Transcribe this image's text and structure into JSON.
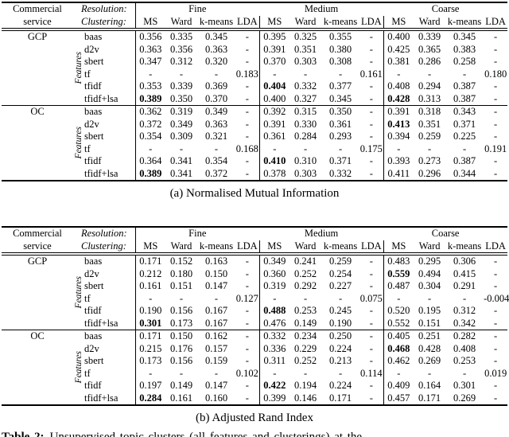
{
  "tables": [
    {
      "caption": "(a) Normalised Mutual Information",
      "header": {
        "col1_line1": "Commercial",
        "col1_line2": "service",
        "row1_label": "Resolution:",
        "row2_label": "Clustering:",
        "groups": [
          "Fine",
          "Medium",
          "Coarse"
        ],
        "subcolumns": [
          "MS",
          "Ward",
          "k-means",
          "LDA"
        ]
      },
      "sections": [
        {
          "service": "GCP",
          "features_label": "Features",
          "rows": [
            {
              "feature": "baas",
              "values": [
                "0.356",
                "0.335",
                "0.345",
                "-",
                "0.395",
                "0.325",
                "0.355",
                "-",
                "0.400",
                "0.339",
                "0.345",
                "-"
              ],
              "bold": []
            },
            {
              "feature": "d2v",
              "values": [
                "0.363",
                "0.356",
                "0.363",
                "-",
                "0.391",
                "0.351",
                "0.380",
                "-",
                "0.425",
                "0.365",
                "0.383",
                "-"
              ],
              "bold": []
            },
            {
              "feature": "sbert",
              "values": [
                "0.347",
                "0.312",
                "0.320",
                "-",
                "0.370",
                "0.303",
                "0.308",
                "-",
                "0.381",
                "0.286",
                "0.258",
                "-"
              ],
              "bold": []
            },
            {
              "feature": "tf",
              "values": [
                "-",
                "-",
                "-",
                "0.183",
                "-",
                "-",
                "-",
                "0.161",
                "-",
                "-",
                "-",
                "0.180"
              ],
              "bold": []
            },
            {
              "feature": "tfidf",
              "values": [
                "0.353",
                "0.339",
                "0.369",
                "-",
                "0.404",
                "0.332",
                "0.377",
                "-",
                "0.408",
                "0.294",
                "0.387",
                "-"
              ],
              "bold": [
                4
              ]
            },
            {
              "feature": "tfidf+lsa",
              "values": [
                "0.389",
                "0.350",
                "0.370",
                "-",
                "0.400",
                "0.327",
                "0.345",
                "-",
                "0.428",
                "0.313",
                "0.387",
                "-"
              ],
              "bold": [
                0,
                8
              ]
            }
          ]
        },
        {
          "service": "OC",
          "features_label": "Features",
          "rows": [
            {
              "feature": "baas",
              "values": [
                "0.362",
                "0.319",
                "0.349",
                "-",
                "0.392",
                "0.315",
                "0.350",
                "-",
                "0.391",
                "0.318",
                "0.343",
                "-"
              ],
              "bold": []
            },
            {
              "feature": "d2v",
              "values": [
                "0.372",
                "0.349",
                "0.363",
                "-",
                "0.391",
                "0.330",
                "0.361",
                "-",
                "0.413",
                "0.351",
                "0.371",
                "-"
              ],
              "bold": [
                8
              ]
            },
            {
              "feature": "sbert",
              "values": [
                "0.354",
                "0.309",
                "0.321",
                "-",
                "0.361",
                "0.284",
                "0.293",
                "-",
                "0.394",
                "0.259",
                "0.225",
                "-"
              ],
              "bold": []
            },
            {
              "feature": "tf",
              "values": [
                "-",
                "-",
                "-",
                "0.168",
                "-",
                "-",
                "-",
                "0.175",
                "-",
                "-",
                "-",
                "0.191"
              ],
              "bold": []
            },
            {
              "feature": "tfidf",
              "values": [
                "0.364",
                "0.341",
                "0.354",
                "-",
                "0.410",
                "0.310",
                "0.371",
                "-",
                "0.393",
                "0.273",
                "0.387",
                "-"
              ],
              "bold": [
                4
              ]
            },
            {
              "feature": "tfidf+lsa",
              "values": [
                "0.389",
                "0.341",
                "0.372",
                "-",
                "0.378",
                "0.303",
                "0.332",
                "-",
                "0.411",
                "0.296",
                "0.344",
                "-"
              ],
              "bold": [
                0
              ]
            }
          ]
        }
      ]
    },
    {
      "caption": "(b) Adjusted Rand Index",
      "header": {
        "col1_line1": "Commercial",
        "col1_line2": "service",
        "row1_label": "Resolution:",
        "row2_label": "Clustering:",
        "groups": [
          "Fine",
          "Medium",
          "Coarse"
        ],
        "subcolumns": [
          "MS",
          "Ward",
          "k-means",
          "LDA"
        ]
      },
      "sections": [
        {
          "service": "GCP",
          "features_label": "Features",
          "rows": [
            {
              "feature": "baas",
              "values": [
                "0.171",
                "0.152",
                "0.163",
                "-",
                "0.349",
                "0.241",
                "0.259",
                "-",
                "0.483",
                "0.295",
                "0.306",
                "-"
              ],
              "bold": []
            },
            {
              "feature": "d2v",
              "values": [
                "0.212",
                "0.180",
                "0.150",
                "-",
                "0.360",
                "0.252",
                "0.254",
                "-",
                "0.559",
                "0.494",
                "0.415",
                "-"
              ],
              "bold": [
                8
              ]
            },
            {
              "feature": "sbert",
              "values": [
                "0.161",
                "0.151",
                "0.147",
                "-",
                "0.319",
                "0.292",
                "0.227",
                "-",
                "0.487",
                "0.304",
                "0.291",
                "-"
              ],
              "bold": []
            },
            {
              "feature": "tf",
              "values": [
                "-",
                "-",
                "-",
                "0.127",
                "-",
                "-",
                "-",
                "0.075",
                "-",
                "-",
                "-",
                "-0.004"
              ],
              "bold": []
            },
            {
              "feature": "tfidf",
              "values": [
                "0.190",
                "0.156",
                "0.167",
                "-",
                "0.488",
                "0.253",
                "0.245",
                "-",
                "0.520",
                "0.195",
                "0.312",
                "-"
              ],
              "bold": [
                4
              ]
            },
            {
              "feature": "tfidf+lsa",
              "values": [
                "0.301",
                "0.173",
                "0.167",
                "-",
                "0.476",
                "0.149",
                "0.190",
                "-",
                "0.552",
                "0.151",
                "0.342",
                "-"
              ],
              "bold": [
                0
              ]
            }
          ]
        },
        {
          "service": "OC",
          "features_label": "Features",
          "rows": [
            {
              "feature": "baas",
              "values": [
                "0.171",
                "0.150",
                "0.162",
                "-",
                "0.332",
                "0.234",
                "0.250",
                "-",
                "0.405",
                "0.251",
                "0.282",
                "-"
              ],
              "bold": []
            },
            {
              "feature": "d2v",
              "values": [
                "0.215",
                "0.176",
                "0.157",
                "-",
                "0.336",
                "0.229",
                "0.224",
                "-",
                "0.468",
                "0.428",
                "0.408",
                "-"
              ],
              "bold": [
                8
              ]
            },
            {
              "feature": "sbert",
              "values": [
                "0.173",
                "0.156",
                "0.159",
                "-",
                "0.311",
                "0.252",
                "0.213",
                "-",
                "0.462",
                "0.269",
                "0.253",
                "-"
              ],
              "bold": []
            },
            {
              "feature": "tf",
              "values": [
                "-",
                "-",
                "-",
                "0.102",
                "-",
                "-",
                "-",
                "0.114",
                "-",
                "-",
                "-",
                "0.019"
              ],
              "bold": []
            },
            {
              "feature": "tfidf",
              "values": [
                "0.197",
                "0.149",
                "0.147",
                "-",
                "0.422",
                "0.194",
                "0.224",
                "-",
                "0.409",
                "0.164",
                "0.301",
                "-"
              ],
              "bold": [
                4
              ]
            },
            {
              "feature": "tfidf+lsa",
              "values": [
                "0.284",
                "0.161",
                "0.160",
                "-",
                "0.399",
                "0.146",
                "0.171",
                "-",
                "0.457",
                "0.171",
                "0.269",
                "-"
              ],
              "bold": [
                0
              ]
            }
          ]
        }
      ]
    }
  ],
  "main_caption": {
    "label": "Table 2:",
    "text": "Unsupervised topic clusters (all features and clusterings) at the"
  }
}
